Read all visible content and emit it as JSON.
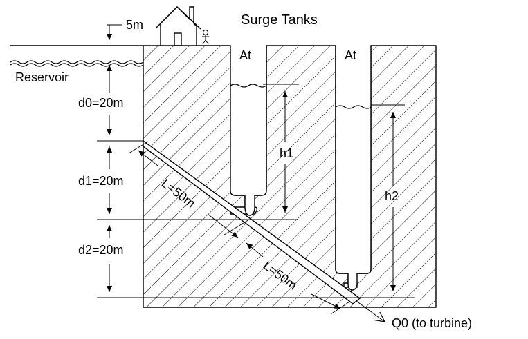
{
  "title": "Surge Tanks",
  "house_offset_label": "5m",
  "reservoir_label": "Reservoir",
  "tank_area_labels": [
    "At",
    "At"
  ],
  "depth_labels": [
    "d0=20m",
    "d1=20m",
    "d2=20m"
  ],
  "head_labels": [
    "h1",
    "h2"
  ],
  "pipe_length_labels": [
    "L=50m",
    "L=50m"
  ],
  "outflow_label": "Q0 (to turbine)"
}
